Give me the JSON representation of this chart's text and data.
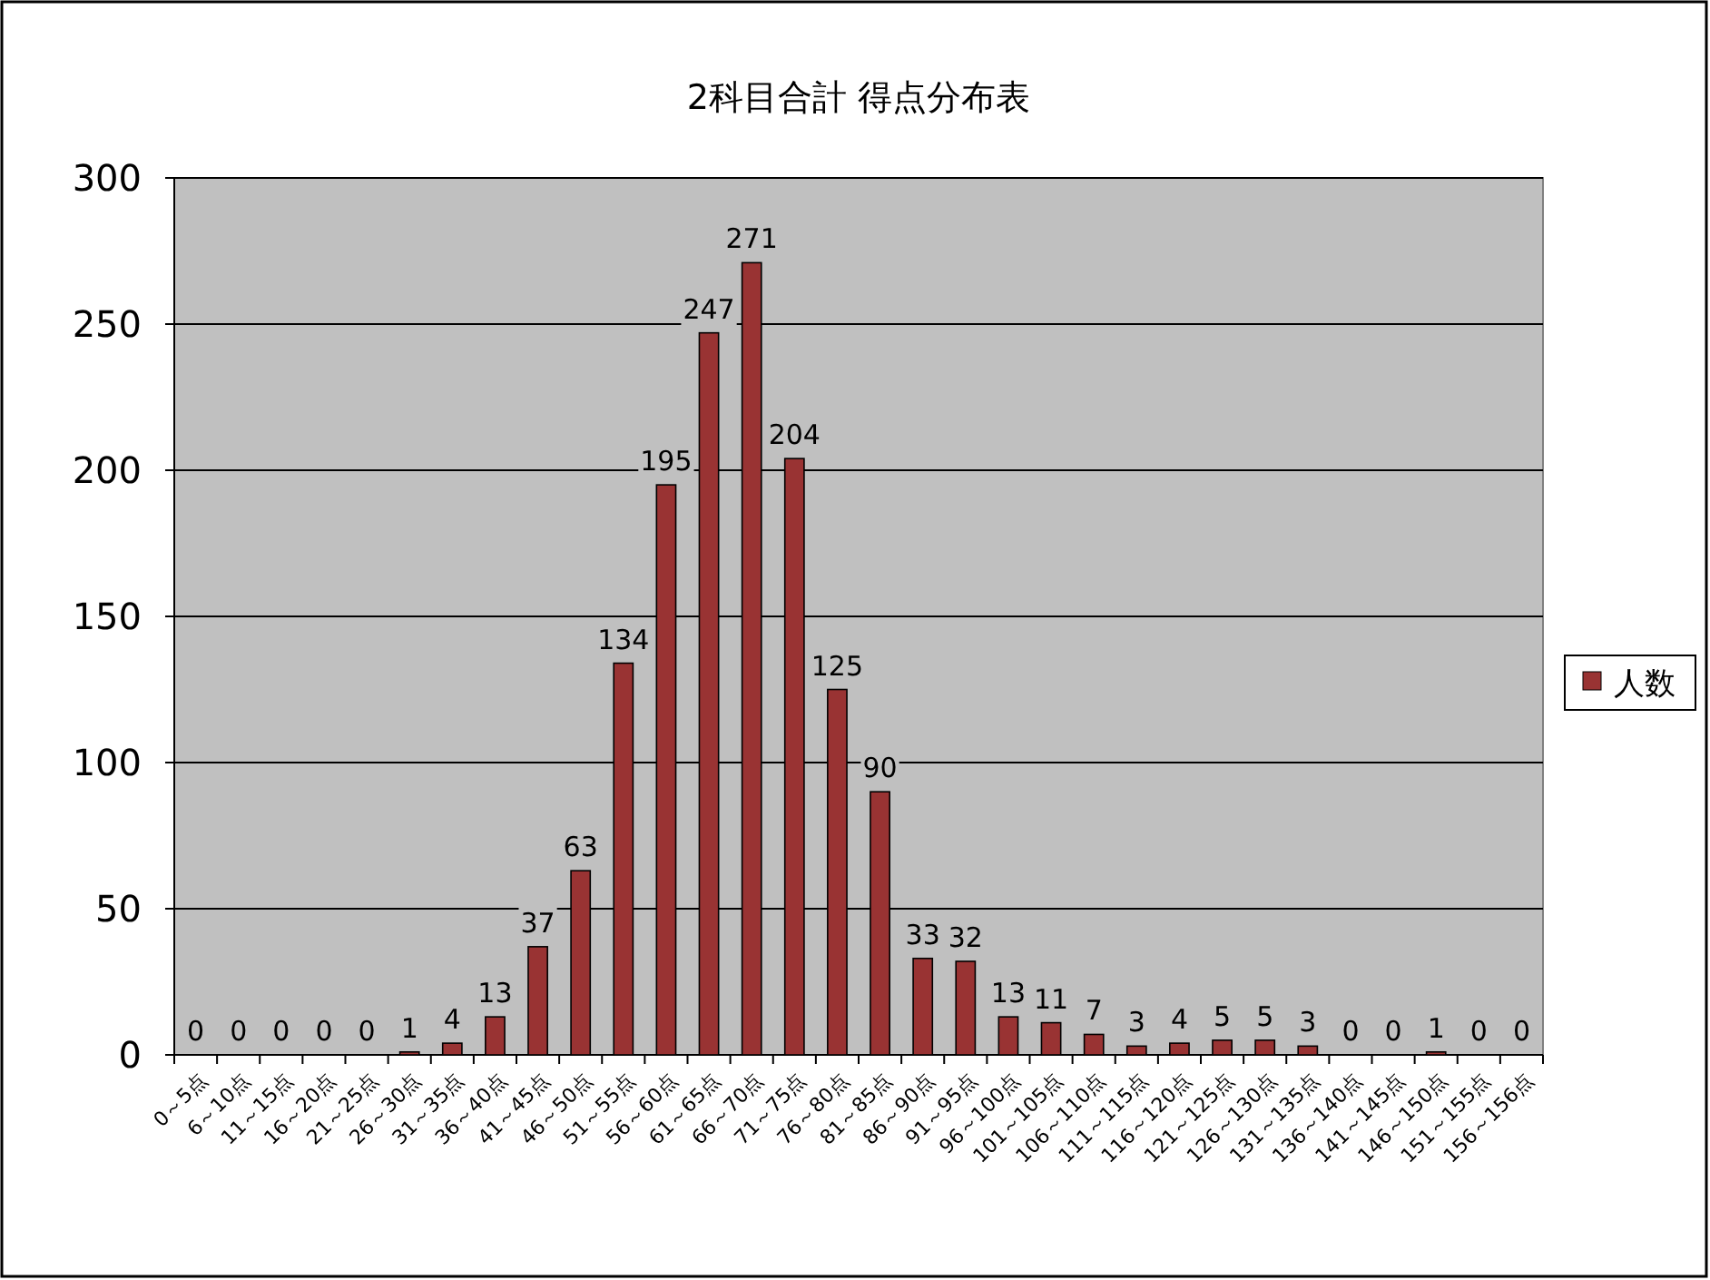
{
  "chart_data": {
    "type": "bar",
    "title": "2科目合計 得点分布表",
    "categories": [
      "0～5点",
      "6～10点",
      "11～15点",
      "16～20点",
      "21～25点",
      "26～30点",
      "31～35点",
      "36～40点",
      "41～45点",
      "46～50点",
      "51～55点",
      "56～60点",
      "61～65点",
      "66～70点",
      "71～75点",
      "76～80点",
      "81～85点",
      "86～90点",
      "91～95点",
      "96～100点",
      "101～105点",
      "106～110点",
      "111～115点",
      "116～120点",
      "121～125点",
      "126～130点",
      "131～135点",
      "136～140点",
      "141～145点",
      "146～150点",
      "151～155点",
      "156～156点"
    ],
    "series": [
      {
        "name": "人数",
        "color": "#993333",
        "values": [
          0,
          0,
          0,
          0,
          0,
          1,
          4,
          13,
          37,
          63,
          134,
          195,
          247,
          271,
          204,
          125,
          90,
          33,
          32,
          13,
          11,
          7,
          3,
          4,
          5,
          5,
          3,
          0,
          0,
          1,
          0,
          0
        ]
      }
    ],
    "ylim": [
      0,
      300
    ],
    "yticks": [
      0,
      50,
      100,
      150,
      200,
      250,
      300
    ],
    "grid": "y",
    "legend": "right",
    "data_labels": true
  }
}
